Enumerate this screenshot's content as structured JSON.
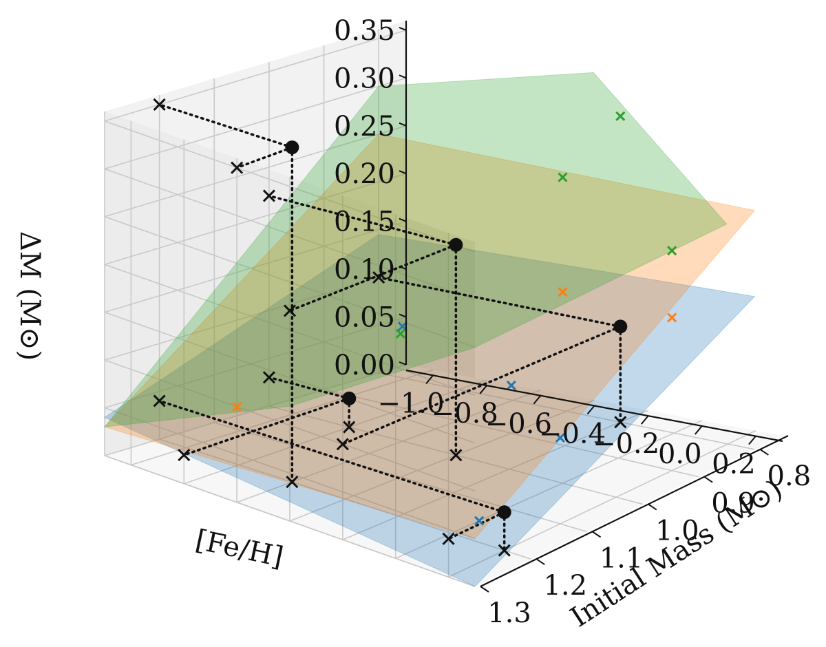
{
  "chart_data": {
    "type": "surface3d",
    "xlabel": "[Fe/H]",
    "ylabel": "Initial Mass (M$_\\odot$)",
    "zlabel": "ΔM (M$_\\odot$)",
    "xlabel_text": "[Fe/H]",
    "ylabel_text": "Initial Mass (M⊙)",
    "zlabel_text": "ΔM (M⊙)",
    "xlim": [
      -1.1,
      0.3
    ],
    "ylim": [
      0.75,
      1.3
    ],
    "zlim": [
      0.0,
      0.36
    ],
    "x_ticks": [
      "−1.0",
      "−0.8",
      "−0.6",
      "−0.4",
      "−0.2",
      "0.0",
      "0.2"
    ],
    "x_tick_values": [
      -1.0,
      -0.8,
      -0.6,
      -0.4,
      -0.2,
      0.0,
      0.2
    ],
    "y_ticks": [
      "0.8",
      "0.9",
      "1.0",
      "1.1",
      "1.2",
      "1.3"
    ],
    "y_tick_values": [
      0.8,
      0.9,
      1.0,
      1.1,
      1.2,
      1.3
    ],
    "z_ticks": [
      "0.00",
      "0.05",
      "0.10",
      "0.15",
      "0.20",
      "0.25",
      "0.30",
      "0.35"
    ],
    "z_tick_values": [
      0.0,
      0.05,
      0.1,
      0.15,
      0.2,
      0.25,
      0.3,
      0.35
    ],
    "grid": true,
    "colors": {
      "blue": "#1f77b4",
      "orange": "#ff7f0e",
      "green": "#2ca02c"
    },
    "surfaces": [
      {
        "color": "blue",
        "corners": [
          {
            "x": -1.1,
            "y": 0.8,
            "z": 0.145
          },
          {
            "x": 0.3,
            "y": 0.8,
            "z": 0.16
          },
          {
            "x": 0.3,
            "y": 1.3,
            "z": 0.0
          },
          {
            "x": -1.1,
            "y": 1.3,
            "z": 0.04
          }
        ]
      },
      {
        "color": "orange",
        "corners": [
          {
            "x": -1.1,
            "y": 0.8,
            "z": 0.25
          },
          {
            "x": 0.3,
            "y": 0.8,
            "z": 0.25
          },
          {
            "x": 0.3,
            "y": 1.3,
            "z": 0.05
          },
          {
            "x": -1.1,
            "y": 1.3,
            "z": 0.03
          }
        ]
      },
      {
        "color": "green",
        "corners": [
          {
            "x": -1.1,
            "y": 0.8,
            "z": 0.3
          },
          {
            "x": -0.3,
            "y": 0.8,
            "z": 0.36
          },
          {
            "x": 0.3,
            "y": 0.85,
            "z": 0.25
          },
          {
            "x": 0.3,
            "y": 1.3,
            "z": 0.25
          },
          {
            "x": -0.4,
            "y": 1.3,
            "z": 0.12
          },
          {
            "x": -1.1,
            "y": 1.3,
            "z": 0.03
          }
        ]
      }
    ],
    "colored_markers": [
      {
        "color": "blue",
        "x": -0.4,
        "y": 0.9,
        "z": 0.05
      },
      {
        "color": "blue",
        "x": 0.0,
        "y": 1.15,
        "z": 0.0
      },
      {
        "color": "blue",
        "x": -0.6,
        "y": 1.0,
        "z": 0.12
      },
      {
        "color": "blue",
        "x": 0.2,
        "y": 1.1,
        "z": 0.09
      },
      {
        "color": "orange",
        "x": 0.0,
        "y": 1.0,
        "z": 0.2
      },
      {
        "color": "orange",
        "x": -0.6,
        "y": 1.3,
        "z": 0.1
      },
      {
        "color": "orange",
        "x": 0.2,
        "y": 0.9,
        "z": 0.16
      },
      {
        "color": "green",
        "x": 0.2,
        "y": 0.9,
        "z": 0.23
      },
      {
        "color": "green",
        "x": 0.0,
        "y": 1.0,
        "z": 0.32
      },
      {
        "color": "green",
        "x": -0.4,
        "y": 1.1,
        "z": 0.15
      },
      {
        "color": "green",
        "x": -0.2,
        "y": 0.8,
        "z": 0.32
      }
    ],
    "points": [
      {
        "x": -0.6,
        "y": 1.2,
        "z": 0.35
      },
      {
        "x": -0.4,
        "y": 1.0,
        "z": 0.22
      },
      {
        "x": -0.2,
        "y": 0.8,
        "z": 0.1
      },
      {
        "x": -0.8,
        "y": 1.0,
        "z": 0.03
      },
      {
        "x": 0.2,
        "y": 1.2,
        "z": 0.04
      }
    ]
  }
}
